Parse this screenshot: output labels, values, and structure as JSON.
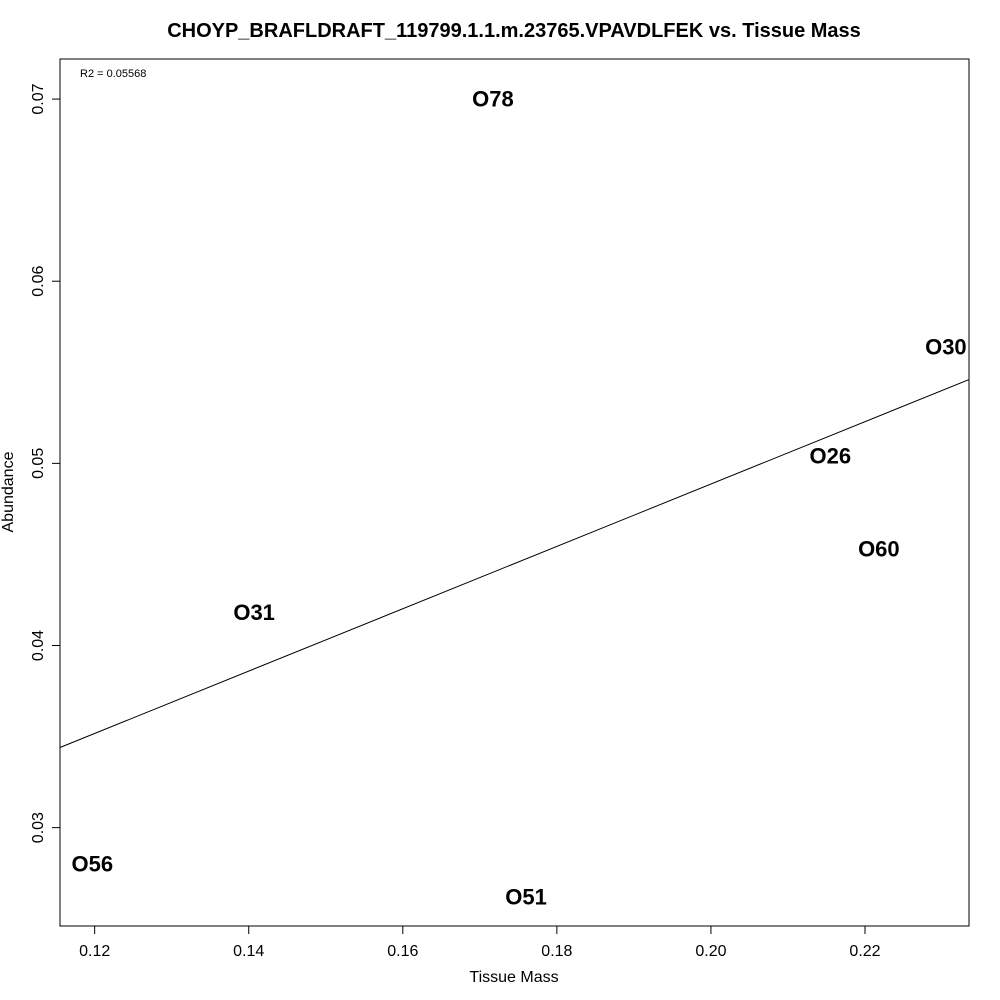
{
  "chart_data": {
    "type": "scatter",
    "title": "CHOYP_BRAFLDRAFT_119799.1.1.m.23765.VPAVDLFEK vs. Tissue Mass",
    "xlabel": "Tissue Mass",
    "ylabel": "Abundance",
    "annotation": "R2 = 0.05568",
    "xlim": [
      0.1155,
      0.2335
    ],
    "ylim": [
      0.0246,
      0.0722
    ],
    "x_ticks": [
      0.12,
      0.14,
      0.16,
      0.18,
      0.2,
      0.22
    ],
    "x_tick_labels": [
      "0.12",
      "0.14",
      "0.16",
      "0.18",
      "0.20",
      "0.22"
    ],
    "y_ticks": [
      0.03,
      0.04,
      0.05,
      0.06,
      0.07
    ],
    "y_tick_labels": [
      "0.03",
      "0.04",
      "0.05",
      "0.06",
      "0.07"
    ],
    "points": [
      {
        "label": "O78",
        "x": 0.1717,
        "y": 0.07
      },
      {
        "label": "O30",
        "x": 0.2305,
        "y": 0.0564
      },
      {
        "label": "O26",
        "x": 0.2155,
        "y": 0.0504
      },
      {
        "label": "O60",
        "x": 0.2218,
        "y": 0.0453
      },
      {
        "label": "O31",
        "x": 0.1407,
        "y": 0.0418
      },
      {
        "label": "O56",
        "x": 0.1197,
        "y": 0.028
      },
      {
        "label": "O51",
        "x": 0.176,
        "y": 0.0262
      }
    ],
    "fit_line": {
      "x": [
        0.1155,
        0.2335
      ],
      "y": [
        0.0344,
        0.0546
      ]
    },
    "grid": false,
    "legend": "none"
  }
}
